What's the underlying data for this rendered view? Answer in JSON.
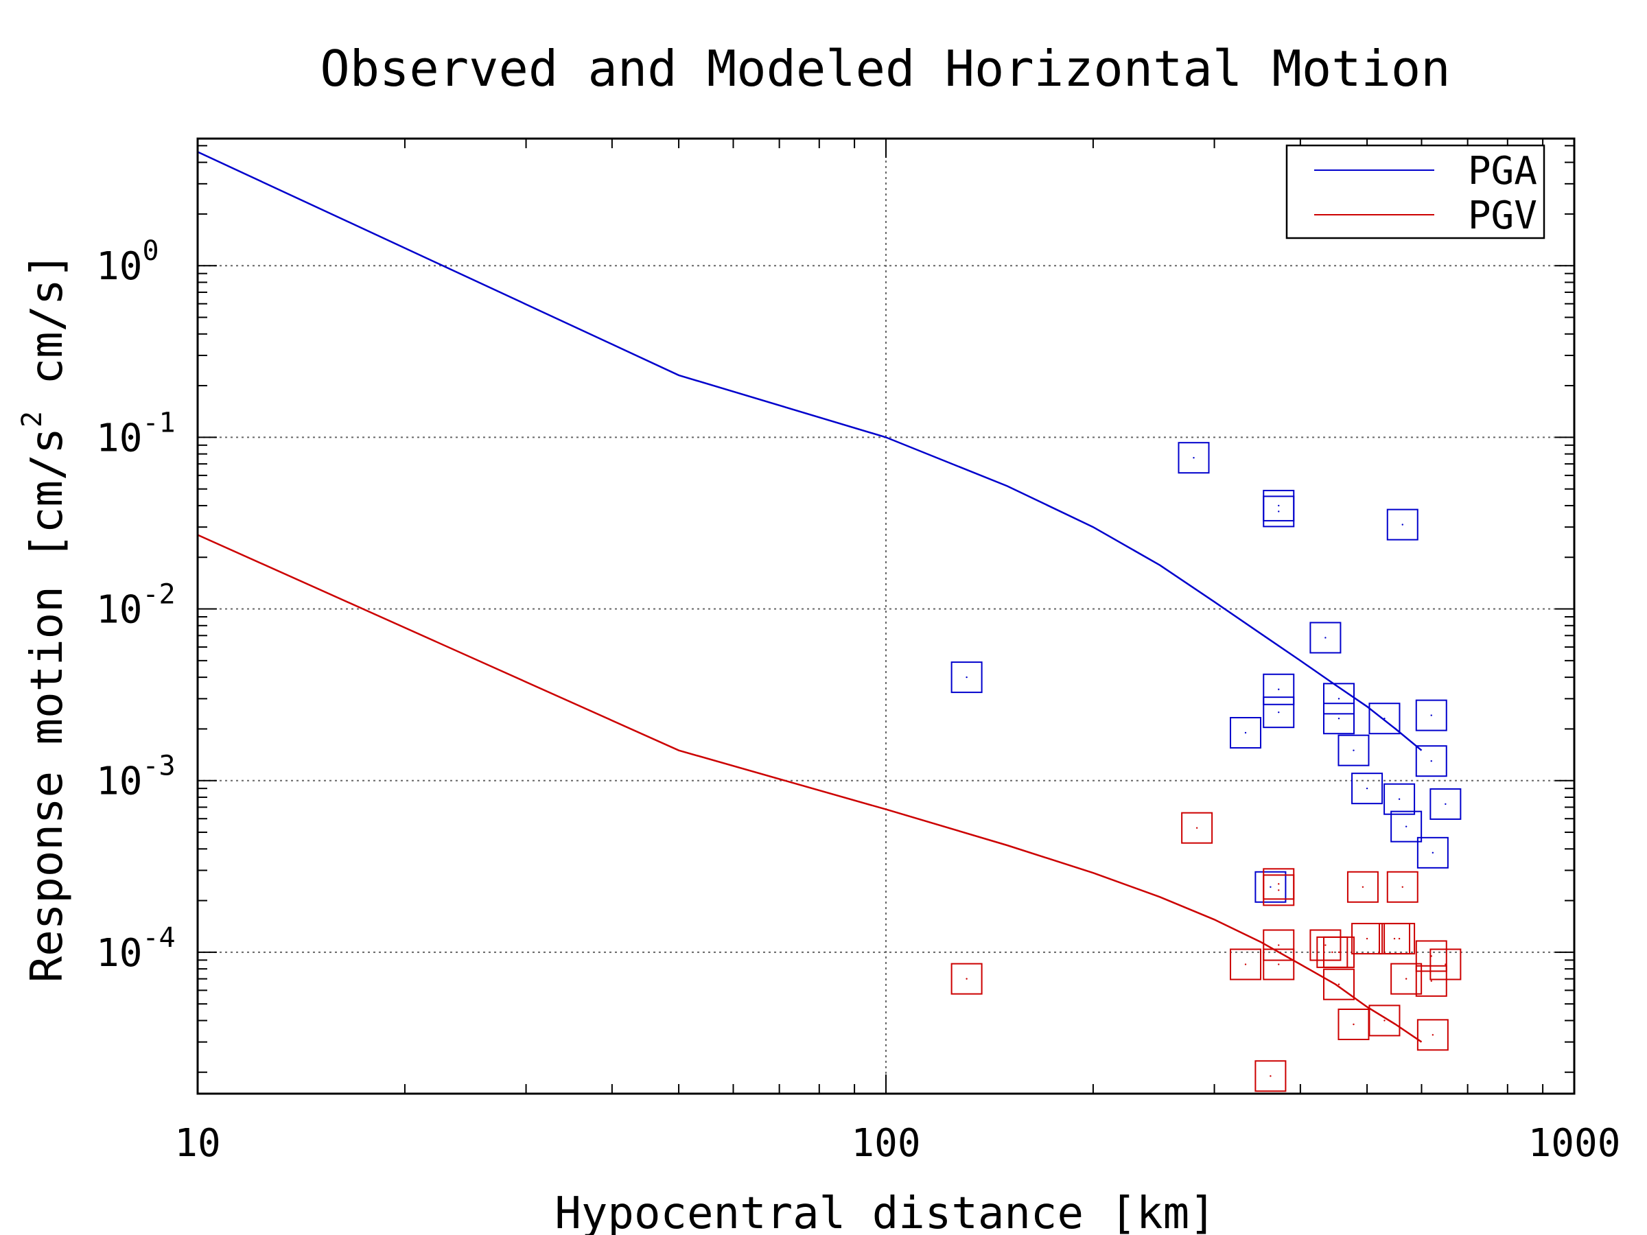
{
  "chart_data": {
    "type": "line+scatter",
    "title": "Observed and Modeled Horizontal Motion",
    "xlabel": "Hypocentral distance [km]",
    "ylabel": {
      "main": "Response motion [cm/s",
      "superscript": "2",
      "tail": "cm/s]"
    },
    "x_scale": "log",
    "y_scale": "log",
    "xlim": [
      10,
      1000
    ],
    "ylim": [
      1.5e-05,
      5.5
    ],
    "x_ticks": [
      {
        "value": 10,
        "label": "10"
      },
      {
        "value": 100,
        "label": "100"
      },
      {
        "value": 1000,
        "label": "1000"
      }
    ],
    "y_ticks": [
      {
        "value": 1,
        "base": "10",
        "exp": "0"
      },
      {
        "value": 0.1,
        "base": "10",
        "exp": "-1"
      },
      {
        "value": 0.01,
        "base": "10",
        "exp": "-2"
      },
      {
        "value": 0.001,
        "base": "10",
        "exp": "-3"
      },
      {
        "value": 0.0001,
        "base": "10",
        "exp": "-4"
      }
    ],
    "grid": true,
    "legend_position": "top-right",
    "series": [
      {
        "name": "PGA",
        "kind": "line",
        "color": "#0000cc",
        "x": [
          10,
          50,
          100,
          150,
          200,
          250,
          300,
          350,
          400,
          450,
          500,
          550,
          600
        ],
        "y": [
          4.6,
          0.23,
          0.1,
          0.052,
          0.03,
          0.018,
          0.011,
          0.0072,
          0.005,
          0.0036,
          0.0027,
          0.002,
          0.0015
        ]
      },
      {
        "name": "PGV",
        "kind": "line",
        "color": "#cc0000",
        "x": [
          10,
          50,
          100,
          150,
          200,
          250,
          300,
          350,
          400,
          450,
          500,
          550,
          600
        ],
        "y": [
          0.027,
          0.0015,
          0.00068,
          0.00042,
          0.00029,
          0.00021,
          0.000155,
          0.000115,
          8.5e-05,
          6.5e-05,
          4.8e-05,
          3.8e-05,
          3e-05
        ]
      },
      {
        "kind": "scatter",
        "color": "#0000cc",
        "x": [
          280,
          372,
          372,
          131,
          372,
          372,
          333,
          435,
          455,
          455,
          478,
          500,
          530,
          563,
          620,
          620,
          557,
          570,
          650,
          623,
          362
        ],
        "y": [
          0.076,
          0.04,
          0.037,
          0.004,
          0.0034,
          0.0025,
          0.0019,
          0.0068,
          0.003,
          0.0023,
          0.0015,
          0.0009,
          0.0023,
          0.031,
          0.0024,
          0.0013,
          0.00078,
          0.00054,
          0.00073,
          0.00038,
          0.00024
        ]
      },
      {
        "kind": "scatter",
        "color": "#cc0000",
        "x": [
          283,
          372,
          372,
          131,
          372,
          372,
          333,
          435,
          455,
          455,
          478,
          500,
          530,
          563,
          620,
          620,
          557,
          570,
          650,
          623,
          493,
          548,
          362,
          445
        ],
        "y": [
          0.00053,
          0.00025,
          0.00023,
          7e-05,
          0.00011,
          8.5e-05,
          8.5e-05,
          0.00011,
          0.0001,
          6.5e-05,
          3.8e-05,
          0.00012,
          4e-05,
          0.00024,
          9.5e-05,
          6.8e-05,
          0.00012,
          7e-05,
          8.5e-05,
          3.3e-05,
          0.00024,
          0.00012,
          1.9e-05,
          0.0001
        ]
      }
    ]
  }
}
